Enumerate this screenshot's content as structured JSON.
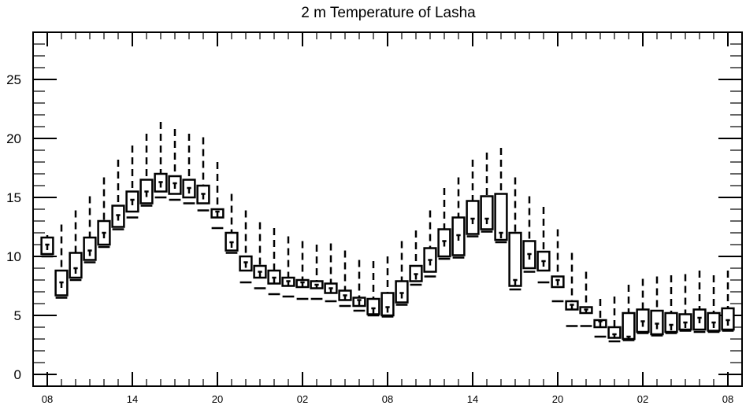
{
  "chart_data": {
    "type": "box",
    "title": "2 m Temperature of Lasha",
    "xlabel": "",
    "ylabel": "",
    "ylim": [
      -1,
      29
    ],
    "yticks": [
      0,
      5,
      10,
      15,
      20,
      25
    ],
    "xtick_labels": [
      "08",
      "14",
      "20",
      "02",
      "08",
      "14",
      "20",
      "02",
      "08"
    ],
    "xtick_positions": [
      0,
      6,
      12,
      18,
      24,
      30,
      36,
      42,
      48
    ],
    "xlim": [
      -1,
      49
    ],
    "boxes": [
      {
        "t": 0,
        "low": 10.0,
        "q1": 10.2,
        "med": 11.0,
        "q3": 11.6,
        "high": 11.8
      },
      {
        "t": 1,
        "low": 6.5,
        "q1": 6.7,
        "med": 7.8,
        "q3": 8.8,
        "high": 12.7
      },
      {
        "t": 2,
        "low": 8.0,
        "q1": 8.2,
        "med": 9.0,
        "q3": 10.3,
        "high": 13.9
      },
      {
        "t": 3,
        "low": 9.5,
        "q1": 9.7,
        "med": 10.5,
        "q3": 11.6,
        "high": 15.1
      },
      {
        "t": 4,
        "low": 10.8,
        "q1": 11.0,
        "med": 12.0,
        "q3": 13.0,
        "high": 16.7
      },
      {
        "t": 5,
        "low": 12.3,
        "q1": 12.5,
        "med": 13.5,
        "q3": 14.3,
        "high": 18.2
      },
      {
        "t": 6,
        "low": 13.3,
        "q1": 13.8,
        "med": 14.8,
        "q3": 15.5,
        "high": 19.4
      },
      {
        "t": 7,
        "low": 14.3,
        "q1": 14.5,
        "med": 15.5,
        "q3": 16.5,
        "high": 20.4
      },
      {
        "t": 8,
        "low": 15.0,
        "q1": 15.5,
        "med": 16.3,
        "q3": 17.0,
        "high": 21.4
      },
      {
        "t": 9,
        "low": 14.8,
        "q1": 15.3,
        "med": 16.2,
        "q3": 16.8,
        "high": 20.8
      },
      {
        "t": 10,
        "low": 14.5,
        "q1": 15.0,
        "med": 15.8,
        "q3": 16.5,
        "high": 20.4
      },
      {
        "t": 11,
        "low": 13.9,
        "q1": 14.5,
        "med": 15.3,
        "q3": 16.0,
        "high": 20.1
      },
      {
        "t": 12,
        "low": 12.4,
        "q1": 13.3,
        "med": 13.8,
        "q3": 14.0,
        "high": 18.0
      },
      {
        "t": 13,
        "low": 10.3,
        "q1": 10.5,
        "med": 11.2,
        "q3": 12.0,
        "high": 15.3
      },
      {
        "t": 14,
        "low": 7.8,
        "q1": 8.8,
        "med": 9.5,
        "q3": 10.0,
        "high": 13.9
      },
      {
        "t": 15,
        "low": 7.3,
        "q1": 8.2,
        "med": 8.7,
        "q3": 9.2,
        "high": 12.9
      },
      {
        "t": 16,
        "low": 6.8,
        "q1": 7.7,
        "med": 8.2,
        "q3": 8.8,
        "high": 12.4
      },
      {
        "t": 17,
        "low": 6.6,
        "q1": 7.5,
        "med": 7.9,
        "q3": 8.2,
        "high": 11.7
      },
      {
        "t": 18,
        "low": 6.4,
        "q1": 7.4,
        "med": 7.8,
        "q3": 8.0,
        "high": 11.3
      },
      {
        "t": 19,
        "low": 6.4,
        "q1": 7.3,
        "med": 7.6,
        "q3": 7.9,
        "high": 11.0
      },
      {
        "t": 20,
        "low": 6.2,
        "q1": 6.9,
        "med": 7.3,
        "q3": 7.7,
        "high": 11.1
      },
      {
        "t": 21,
        "low": 5.8,
        "q1": 6.3,
        "med": 6.7,
        "q3": 7.1,
        "high": 10.5
      },
      {
        "t": 22,
        "low": 5.4,
        "q1": 5.8,
        "med": 6.3,
        "q3": 6.5,
        "high": 9.7
      },
      {
        "t": 23,
        "low": 5.0,
        "q1": 5.1,
        "med": 5.6,
        "q3": 6.4,
        "high": 9.6
      },
      {
        "t": 24,
        "low": 4.9,
        "q1": 5.0,
        "med": 5.7,
        "q3": 6.9,
        "high": 10.0
      },
      {
        "t": 25,
        "low": 5.9,
        "q1": 6.1,
        "med": 6.9,
        "q3": 7.9,
        "high": 11.3
      },
      {
        "t": 26,
        "low": 7.6,
        "q1": 7.9,
        "med": 8.5,
        "q3": 9.2,
        "high": 12.2
      },
      {
        "t": 27,
        "low": 8.3,
        "q1": 8.7,
        "med": 9.7,
        "q3": 10.7,
        "high": 13.9
      },
      {
        "t": 28,
        "low": 9.8,
        "q1": 10.0,
        "med": 11.3,
        "q3": 12.3,
        "high": 15.8
      },
      {
        "t": 29,
        "low": 9.9,
        "q1": 10.1,
        "med": 11.8,
        "q3": 13.3,
        "high": 16.7
      },
      {
        "t": 30,
        "low": 11.7,
        "q1": 11.9,
        "med": 13.2,
        "q3": 14.7,
        "high": 18.2
      },
      {
        "t": 31,
        "low": 12.1,
        "q1": 12.3,
        "med": 13.2,
        "q3": 15.1,
        "high": 18.8
      },
      {
        "t": 32,
        "low": 11.2,
        "q1": 11.4,
        "med": 12.0,
        "q3": 15.3,
        "high": 19.2
      },
      {
        "t": 33,
        "low": 7.2,
        "q1": 7.5,
        "med": 8.0,
        "q3": 12.0,
        "high": 16.7
      },
      {
        "t": 34,
        "low": 8.7,
        "q1": 9.0,
        "med": 10.2,
        "q3": 11.3,
        "high": 15.1
      },
      {
        "t": 35,
        "low": 7.8,
        "q1": 8.8,
        "med": 9.6,
        "q3": 10.4,
        "high": 14.2
      },
      {
        "t": 36,
        "low": 6.2,
        "q1": 7.4,
        "med": 8.0,
        "q3": 8.3,
        "high": 12.3
      },
      {
        "t": 37,
        "low": 4.1,
        "q1": 5.5,
        "med": 5.9,
        "q3": 6.2,
        "high": 10.3
      },
      {
        "t": 38,
        "low": 4.1,
        "q1": 5.2,
        "med": 5.5,
        "q3": 5.7,
        "high": 8.7
      },
      {
        "t": 39,
        "low": 3.2,
        "q1": 4.0,
        "med": 4.5,
        "q3": 4.6,
        "high": 6.4
      },
      {
        "t": 40,
        "low": 2.8,
        "q1": 3.1,
        "med": 3.4,
        "q3": 4.0,
        "high": 6.6
      },
      {
        "t": 41,
        "low": 2.9,
        "q1": 3.0,
        "med": 3.2,
        "q3": 5.2,
        "high": 7.6
      },
      {
        "t": 42,
        "low": 3.5,
        "q1": 3.6,
        "med": 4.5,
        "q3": 5.5,
        "high": 8.1
      },
      {
        "t": 43,
        "low": 3.3,
        "q1": 3.4,
        "med": 4.3,
        "q3": 5.4,
        "high": 8.3
      },
      {
        "t": 44,
        "low": 3.5,
        "q1": 3.6,
        "med": 4.2,
        "q3": 5.2,
        "high": 8.4
      },
      {
        "t": 45,
        "low": 3.7,
        "q1": 3.8,
        "med": 4.4,
        "q3": 5.1,
        "high": 8.5
      },
      {
        "t": 46,
        "low": 3.6,
        "q1": 3.8,
        "med": 4.8,
        "q3": 5.5,
        "high": 8.8
      },
      {
        "t": 47,
        "low": 3.6,
        "q1": 3.7,
        "med": 4.4,
        "q3": 5.2,
        "high": 8.4
      },
      {
        "t": 48,
        "low": 3.7,
        "q1": 3.8,
        "med": 4.6,
        "q3": 5.6,
        "high": 8.8
      }
    ]
  }
}
